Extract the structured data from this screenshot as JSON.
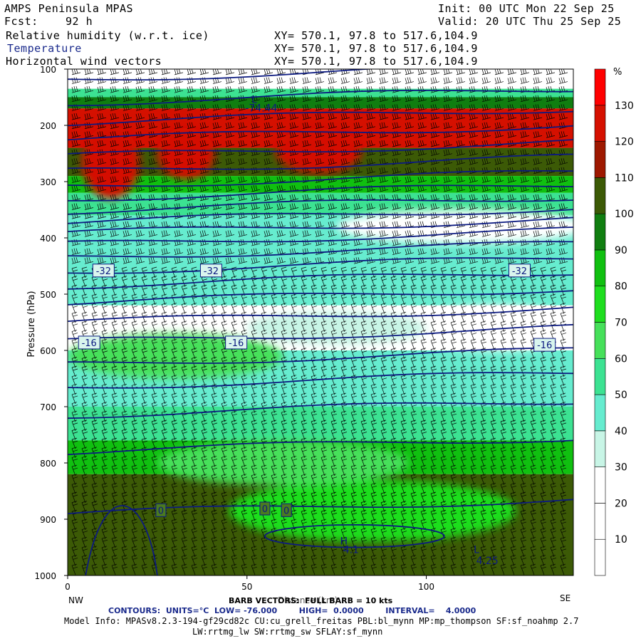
{
  "header": {
    "title": "AMPS Peninsula MPAS",
    "init": "Init: 00 UTC Mon 22 Sep 25",
    "fcst_label": "Fcst:",
    "fcst_value": "92 h",
    "valid": "Valid: 20 UTC Thu 25 Sep 25",
    "fields": [
      {
        "name": "Relative humidity (w.r.t. ice)",
        "xy": "XY= 570.1, 97.8 to 517.6,104.9"
      },
      {
        "name": "Temperature",
        "xy": "XY= 570.1, 97.8 to 517.6,104.9"
      },
      {
        "name": "Horizontal wind vectors",
        "xy": "XY= 570.1, 97.8 to 517.6,104.9"
      }
    ]
  },
  "chart_data": {
    "type": "heatmap",
    "title": "AMPS Peninsula MPAS",
    "ylabel": "Pressure (hPa)",
    "xlabel": "Distance (km)",
    "xlim": [
      0,
      141
    ],
    "ylim": [
      1000,
      100
    ],
    "x_ticks": [
      0,
      50,
      100
    ],
    "y_ticks": [
      100,
      200,
      300,
      400,
      500,
      600,
      700,
      800,
      900,
      1000
    ],
    "x_end_labels": {
      "left": "NW",
      "right": "SE"
    },
    "colorbar": {
      "unit": "%",
      "bounds": [
        0,
        10,
        20,
        30,
        40,
        50,
        60,
        70,
        80,
        90,
        100,
        110,
        120,
        130,
        140
      ],
      "tick_labels": [
        10,
        20,
        30,
        40,
        50,
        60,
        70,
        80,
        90,
        100,
        110,
        120,
        130
      ],
      "colors": [
        "#ffffff",
        "#ffffff",
        "#ffffff",
        "#c8f5e6",
        "#66eccf",
        "#3ce292",
        "#46e05a",
        "#1ede1e",
        "#10c010",
        "#107e10",
        "#3c5a06",
        "#9e1800",
        "#d51000",
        "#ff0000"
      ]
    },
    "rh_layers": [
      {
        "p_top": 100,
        "p_bot": 135,
        "rh": 25
      },
      {
        "p_top": 135,
        "p_bot": 150,
        "rh": 55
      },
      {
        "p_top": 150,
        "p_bot": 170,
        "rh": 95
      },
      {
        "p_top": 170,
        "p_bot": 240,
        "rh": 125
      },
      {
        "p_top": 240,
        "p_bot": 290,
        "rh": 105
      },
      {
        "p_top": 290,
        "p_bot": 320,
        "rh": 85
      },
      {
        "p_top": 320,
        "p_bot": 360,
        "rh": 55
      },
      {
        "p_top": 360,
        "p_bot": 440,
        "rh": 40
      },
      {
        "p_top": 440,
        "p_bot": 520,
        "rh": 45
      },
      {
        "p_top": 520,
        "p_bot": 600,
        "rh": 15
      },
      {
        "p_top": 600,
        "p_bot": 700,
        "rh": 45
      },
      {
        "p_top": 700,
        "p_bot": 760,
        "rh": 55
      },
      {
        "p_top": 760,
        "p_bot": 820,
        "rh": 85
      },
      {
        "p_top": 820,
        "p_bot": 1000,
        "rh": 105
      }
    ],
    "rh_blobs": [
      {
        "x": 12,
        "p": 265,
        "rx": 8,
        "rp": 65,
        "rh": 125
      },
      {
        "x": 33,
        "p": 250,
        "rx": 8,
        "rp": 45,
        "rh": 125
      },
      {
        "x": 70,
        "p": 245,
        "rx": 12,
        "rp": 40,
        "rh": 125
      },
      {
        "x": 110,
        "p": 380,
        "rx": 35,
        "rp": 30,
        "rh": 25
      },
      {
        "x": 120,
        "p": 560,
        "rx": 25,
        "rp": 40,
        "rh": 15
      },
      {
        "x": 75,
        "p": 560,
        "rx": 25,
        "rp": 30,
        "rh": 35
      },
      {
        "x": 30,
        "p": 610,
        "rx": 30,
        "rp": 40,
        "rh": 65
      },
      {
        "x": 85,
        "p": 885,
        "rx": 40,
        "rp": 55,
        "rh": 75
      },
      {
        "x": 60,
        "p": 800,
        "rx": 35,
        "rp": 40,
        "rh": 65
      }
    ],
    "temperature_contours": {
      "units": "°C",
      "low": -76.0,
      "high": 0.0,
      "interval": 4.0,
      "levels_p_at_left": [
        118,
        160,
        195,
        225,
        255,
        282,
        308,
        330,
        352,
        372,
        392,
        412,
        435,
        460,
        485,
        515,
        550,
        585,
        625,
        665,
        715,
        780,
        890
      ],
      "tilt_hpa_across": -25,
      "labels": [
        "-32",
        "-32",
        "-32",
        "-16",
        "-16",
        "-16",
        "0",
        "0",
        "0"
      ],
      "annotations": [
        "L",
        "-74.44",
        "H",
        "4.1",
        "L",
        "4.25"
      ]
    },
    "wind_barbs": {
      "full_barb_kts": 10
    }
  },
  "footer": {
    "barb_text": "BARB VECTORS:  FULL BARB = 10 kts",
    "contours_text": "CONTOURS:  UNITS=°C  LOW= -76.000        HIGH=  0.0000        INTERVAL=    4.0000",
    "model_info": "Model Info: MPASv8.2.3-194-gf29cd82c CU:cu_grell_freitas PBL:bl_mynn MP:mp_thompson SF:sf_noahmp 2.7",
    "model_info2": "LW:rrtmg_lw SW:rrtmg_sw SFLAY:sf_mynn"
  }
}
